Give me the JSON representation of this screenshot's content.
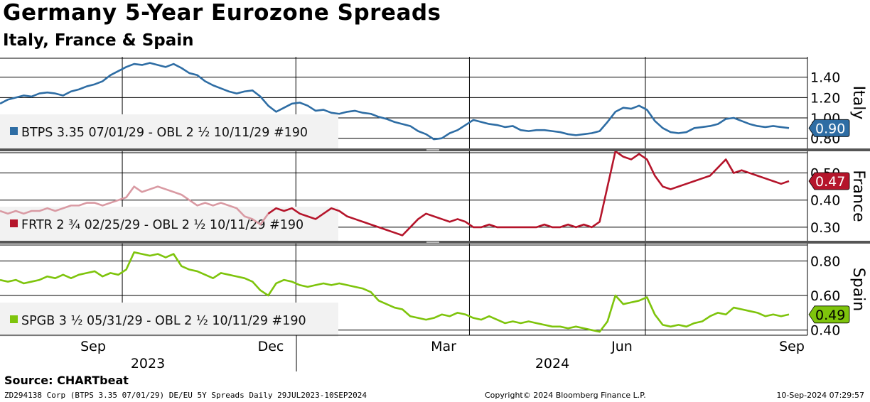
{
  "title": "Germany 5-Year Eurozone Spreads",
  "subtitle": "Italy, France & Spain",
  "source": "Source: CHARTbeat",
  "footer": {
    "left": "ZD294138 Corp (BTPS 3.35 07/01/29) DE/EU 5Y Spreads  Daily 29JUL2023-10SEP2024",
    "center": "Copyright© 2024 Bloomberg Finance L.P.",
    "right": "10-Sep-2024 07:29:57"
  },
  "chart_data": {
    "type": "line",
    "x_months": [
      "Sep",
      "Dec",
      "Mar",
      "Jun",
      "Sep"
    ],
    "x_years": [
      "2023",
      "2024"
    ],
    "panels": [
      {
        "name": "Italy",
        "legend": "BTPS 3.35 07/01/29 - OBL 2 ½ 10/11/29 #190",
        "color": "#2e6da4",
        "last_value_label": "0.90",
        "last_value": 0.9,
        "ylim": [
          0.7,
          1.6
        ],
        "yticks": [
          "0.80",
          "1.00",
          "1.20",
          "1.40"
        ],
        "ytick_values": [
          0.8,
          1.0,
          1.2,
          1.4
        ],
        "x": [
          0,
          0.01,
          0.02,
          0.03,
          0.04,
          0.05,
          0.06,
          0.07,
          0.08,
          0.09,
          0.1,
          0.11,
          0.12,
          0.13,
          0.14,
          0.15,
          0.16,
          0.17,
          0.18,
          0.19,
          0.2,
          0.21,
          0.22,
          0.23,
          0.24,
          0.25,
          0.26,
          0.27,
          0.28,
          0.29,
          0.3,
          0.31,
          0.32,
          0.33,
          0.34,
          0.35,
          0.36,
          0.37,
          0.38,
          0.39,
          0.4,
          0.41,
          0.42,
          0.43,
          0.44,
          0.45,
          0.46,
          0.47,
          0.48,
          0.49,
          0.5,
          0.51,
          0.52,
          0.53,
          0.54,
          0.55,
          0.56,
          0.57,
          0.58,
          0.59,
          0.6,
          0.61,
          0.62,
          0.63,
          0.64,
          0.65,
          0.66,
          0.67,
          0.68,
          0.69,
          0.7,
          0.71,
          0.72,
          0.73,
          0.74,
          0.75,
          0.76,
          0.77,
          0.78,
          0.79,
          0.8,
          0.81,
          0.82,
          0.83,
          0.84,
          0.85,
          0.86,
          0.87,
          0.88,
          0.89,
          0.9,
          0.91,
          0.92,
          0.93,
          0.94,
          0.95,
          0.96,
          0.97,
          0.98,
          0.99,
          1.0
        ],
        "values": [
          1.14,
          1.18,
          1.2,
          1.22,
          1.21,
          1.24,
          1.25,
          1.24,
          1.22,
          1.26,
          1.28,
          1.31,
          1.33,
          1.36,
          1.42,
          1.46,
          1.5,
          1.53,
          1.52,
          1.54,
          1.52,
          1.5,
          1.53,
          1.49,
          1.44,
          1.42,
          1.36,
          1.32,
          1.29,
          1.26,
          1.24,
          1.26,
          1.27,
          1.21,
          1.12,
          1.06,
          1.1,
          1.14,
          1.15,
          1.12,
          1.07,
          1.08,
          1.05,
          1.04,
          1.06,
          1.07,
          1.05,
          1.04,
          1.01,
          0.99,
          0.96,
          0.94,
          0.92,
          0.87,
          0.84,
          0.79,
          0.8,
          0.85,
          0.88,
          0.93,
          0.98,
          0.96,
          0.94,
          0.93,
          0.91,
          0.92,
          0.88,
          0.87,
          0.88,
          0.88,
          0.87,
          0.86,
          0.84,
          0.83,
          0.84,
          0.85,
          0.87,
          0.96,
          1.06,
          1.1,
          1.09,
          1.12,
          1.08,
          0.97,
          0.9,
          0.86,
          0.85,
          0.86,
          0.9,
          0.91,
          0.92,
          0.94,
          0.99,
          1.0,
          0.97,
          0.94,
          0.92,
          0.91,
          0.92,
          0.91,
          0.9
        ]
      },
      {
        "name": "France",
        "legend": "FRTR 2 ¾ 02/25/29 - OBL 2 ½ 10/11/29 #190",
        "color": "#b5152b",
        "faded_color": "#d99aa3",
        "faded_until": 0.34,
        "last_value_label": "0.47",
        "last_value": 0.47,
        "ylim": [
          0.25,
          0.58
        ],
        "yticks": [
          "0.30",
          "0.40",
          "0.50"
        ],
        "ytick_values": [
          0.3,
          0.4,
          0.5
        ],
        "x": [
          0,
          0.01,
          0.02,
          0.03,
          0.04,
          0.05,
          0.06,
          0.07,
          0.08,
          0.09,
          0.1,
          0.11,
          0.12,
          0.13,
          0.14,
          0.15,
          0.16,
          0.17,
          0.18,
          0.19,
          0.2,
          0.21,
          0.22,
          0.23,
          0.24,
          0.25,
          0.26,
          0.27,
          0.28,
          0.29,
          0.3,
          0.31,
          0.32,
          0.33,
          0.34,
          0.35,
          0.36,
          0.37,
          0.38,
          0.39,
          0.4,
          0.41,
          0.42,
          0.43,
          0.44,
          0.45,
          0.46,
          0.47,
          0.48,
          0.49,
          0.5,
          0.51,
          0.52,
          0.53,
          0.54,
          0.55,
          0.56,
          0.57,
          0.58,
          0.59,
          0.6,
          0.61,
          0.62,
          0.63,
          0.64,
          0.65,
          0.66,
          0.67,
          0.68,
          0.69,
          0.7,
          0.71,
          0.72,
          0.73,
          0.74,
          0.75,
          0.76,
          0.77,
          0.78,
          0.79,
          0.8,
          0.81,
          0.82,
          0.83,
          0.84,
          0.85,
          0.86,
          0.87,
          0.88,
          0.89,
          0.9,
          0.91,
          0.92,
          0.93,
          0.94,
          0.95,
          0.96,
          0.97,
          0.98,
          0.99,
          1.0
        ],
        "values": [
          0.36,
          0.35,
          0.36,
          0.35,
          0.36,
          0.36,
          0.37,
          0.36,
          0.37,
          0.38,
          0.38,
          0.39,
          0.39,
          0.38,
          0.39,
          0.4,
          0.41,
          0.45,
          0.43,
          0.44,
          0.45,
          0.44,
          0.43,
          0.42,
          0.4,
          0.38,
          0.39,
          0.38,
          0.39,
          0.38,
          0.37,
          0.34,
          0.33,
          0.31,
          0.35,
          0.37,
          0.36,
          0.37,
          0.35,
          0.34,
          0.33,
          0.35,
          0.37,
          0.36,
          0.34,
          0.33,
          0.32,
          0.31,
          0.3,
          0.29,
          0.28,
          0.27,
          0.3,
          0.33,
          0.35,
          0.34,
          0.33,
          0.32,
          0.33,
          0.32,
          0.3,
          0.3,
          0.31,
          0.3,
          0.3,
          0.3,
          0.3,
          0.3,
          0.3,
          0.31,
          0.3,
          0.3,
          0.31,
          0.3,
          0.31,
          0.3,
          0.32,
          0.45,
          0.58,
          0.56,
          0.55,
          0.57,
          0.55,
          0.49,
          0.45,
          0.44,
          0.45,
          0.46,
          0.47,
          0.48,
          0.49,
          0.52,
          0.55,
          0.5,
          0.51,
          0.5,
          0.49,
          0.48,
          0.47,
          0.46,
          0.47
        ]
      },
      {
        "name": "Spain",
        "legend": "SPGB 3 ½ 05/31/29 - OBL 2 ½ 10/11/29 #190",
        "color": "#7ec40c",
        "last_value_label": "0.49",
        "last_value": 0.49,
        "ylim": [
          0.37,
          0.9
        ],
        "yticks": [
          "0.40",
          "0.60",
          "0.80"
        ],
        "ytick_values": [
          0.4,
          0.6,
          0.8
        ],
        "x": [
          0,
          0.01,
          0.02,
          0.03,
          0.04,
          0.05,
          0.06,
          0.07,
          0.08,
          0.09,
          0.1,
          0.11,
          0.12,
          0.13,
          0.14,
          0.15,
          0.16,
          0.17,
          0.18,
          0.19,
          0.2,
          0.21,
          0.22,
          0.23,
          0.24,
          0.25,
          0.26,
          0.27,
          0.28,
          0.29,
          0.3,
          0.31,
          0.32,
          0.33,
          0.34,
          0.35,
          0.36,
          0.37,
          0.38,
          0.39,
          0.4,
          0.41,
          0.42,
          0.43,
          0.44,
          0.45,
          0.46,
          0.47,
          0.48,
          0.49,
          0.5,
          0.51,
          0.52,
          0.53,
          0.54,
          0.55,
          0.56,
          0.57,
          0.58,
          0.59,
          0.6,
          0.61,
          0.62,
          0.63,
          0.64,
          0.65,
          0.66,
          0.67,
          0.68,
          0.69,
          0.7,
          0.71,
          0.72,
          0.73,
          0.74,
          0.75,
          0.76,
          0.77,
          0.78,
          0.79,
          0.8,
          0.81,
          0.82,
          0.83,
          0.84,
          0.85,
          0.86,
          0.87,
          0.88,
          0.89,
          0.9,
          0.91,
          0.92,
          0.93,
          0.94,
          0.95,
          0.96,
          0.97,
          0.98,
          0.99,
          1.0
        ],
        "values": [
          0.69,
          0.68,
          0.69,
          0.67,
          0.68,
          0.69,
          0.71,
          0.7,
          0.72,
          0.7,
          0.72,
          0.73,
          0.74,
          0.71,
          0.73,
          0.72,
          0.75,
          0.85,
          0.84,
          0.83,
          0.84,
          0.82,
          0.84,
          0.77,
          0.75,
          0.74,
          0.72,
          0.7,
          0.73,
          0.72,
          0.71,
          0.7,
          0.68,
          0.63,
          0.6,
          0.67,
          0.69,
          0.68,
          0.66,
          0.65,
          0.66,
          0.67,
          0.66,
          0.67,
          0.66,
          0.65,
          0.64,
          0.62,
          0.57,
          0.55,
          0.53,
          0.52,
          0.48,
          0.47,
          0.46,
          0.47,
          0.49,
          0.48,
          0.5,
          0.49,
          0.47,
          0.46,
          0.48,
          0.46,
          0.44,
          0.45,
          0.44,
          0.45,
          0.44,
          0.43,
          0.42,
          0.42,
          0.41,
          0.42,
          0.41,
          0.4,
          0.39,
          0.45,
          0.6,
          0.55,
          0.56,
          0.57,
          0.59,
          0.49,
          0.43,
          0.42,
          0.43,
          0.42,
          0.44,
          0.45,
          0.48,
          0.5,
          0.49,
          0.53,
          0.52,
          0.51,
          0.5,
          0.48,
          0.49,
          0.48,
          0.49
        ]
      }
    ]
  }
}
